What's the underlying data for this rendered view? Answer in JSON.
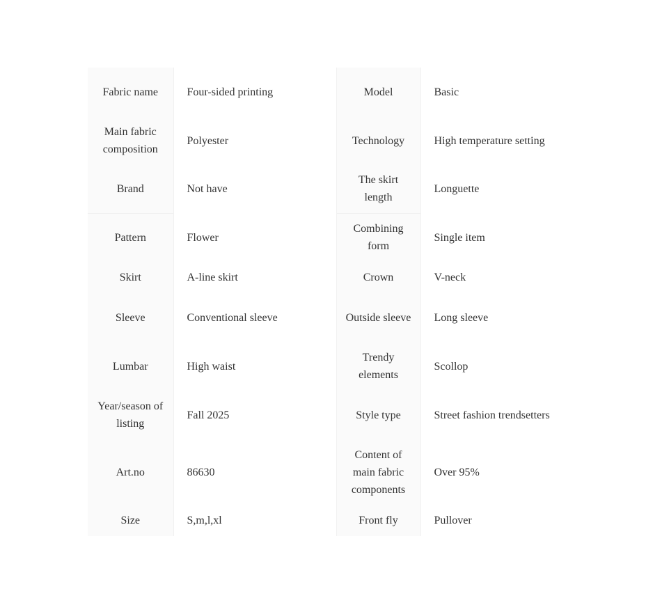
{
  "specs": [
    {
      "label1": "Fabric name",
      "value1": "Four-sided printing",
      "label2": "Model",
      "value2": "Basic"
    },
    {
      "label1": "Main fabric composition",
      "value1": "Polyester",
      "label2": "Technology",
      "value2": "High temperature setting"
    },
    {
      "label1": "Brand",
      "value1": "Not have",
      "label2": "The skirt length",
      "value2": "Longuette"
    },
    {
      "label1": "Pattern",
      "value1": "Flower",
      "label2": "Combining form",
      "value2": "Single item"
    },
    {
      "label1": "Skirt",
      "value1": "A-line skirt",
      "label2": "Crown",
      "value2": "V-neck"
    },
    {
      "label1": "Sleeve",
      "value1": "Conventional sleeve",
      "label2": "Outside sleeve",
      "value2": "Long sleeve"
    },
    {
      "label1": "Lumbar",
      "value1": "High waist",
      "label2": "Trendy elements",
      "value2": "Scollop"
    },
    {
      "label1": "Year/season of listing",
      "value1": "Fall 2025",
      "label2": "Style type",
      "value2": "Street fashion trendsetters"
    },
    {
      "label1": "Art.no",
      "value1": "86630",
      "label2": "Content of main fabric components",
      "value2": "Over 95%"
    },
    {
      "label1": "Size",
      "value1": "S,m,l,xl",
      "label2": "Front fly",
      "value2": "Pullover"
    }
  ]
}
